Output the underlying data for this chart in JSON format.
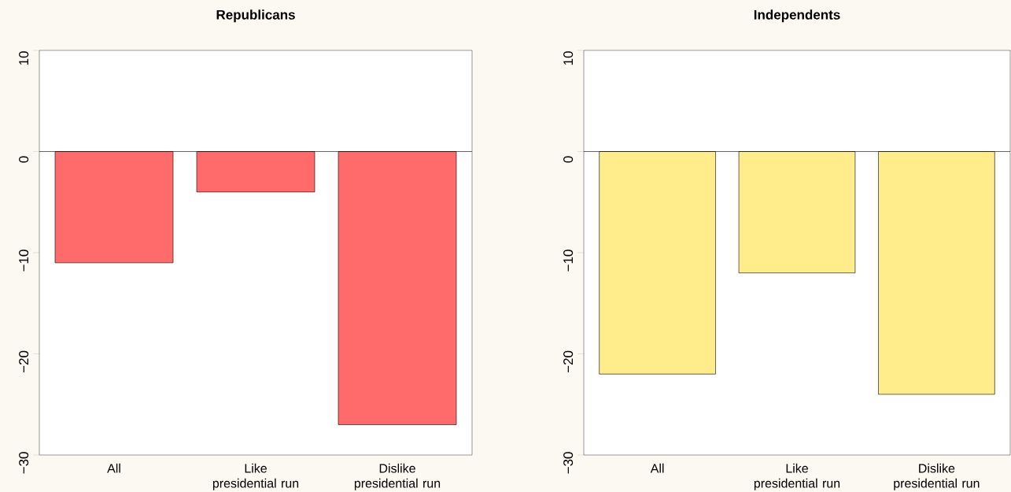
{
  "chart_data": [
    {
      "type": "bar",
      "title": "Republicans",
      "categories": [
        "All",
        "Like presidential run",
        "Dislike presidential run"
      ],
      "values": [
        -11,
        -4,
        -27
      ],
      "color": "#ff6b6b",
      "ylim": [
        -30,
        10
      ],
      "yticks": [
        {
          "value": -30,
          "label": "−30"
        },
        {
          "value": -20,
          "label": "−20"
        },
        {
          "value": -10,
          "label": "−10"
        },
        0,
        10
      ],
      "ref_lines": [
        {
          "axis": "y",
          "value": 0
        }
      ]
    },
    {
      "type": "bar",
      "title": "Independents",
      "categories": [
        "All",
        "Like presidential run",
        "Dislike presidential run"
      ],
      "values": [
        -22,
        -12,
        -24
      ],
      "color": "#ffec8b",
      "ylim": [
        -30,
        10
      ],
      "yticks": [
        {
          "value": -30,
          "label": "−30"
        },
        {
          "value": -20,
          "label": "−20"
        },
        {
          "value": -10,
          "label": "−10"
        },
        0,
        10
      ],
      "ref_lines": [
        {
          "axis": "y",
          "value": 0
        }
      ]
    }
  ]
}
